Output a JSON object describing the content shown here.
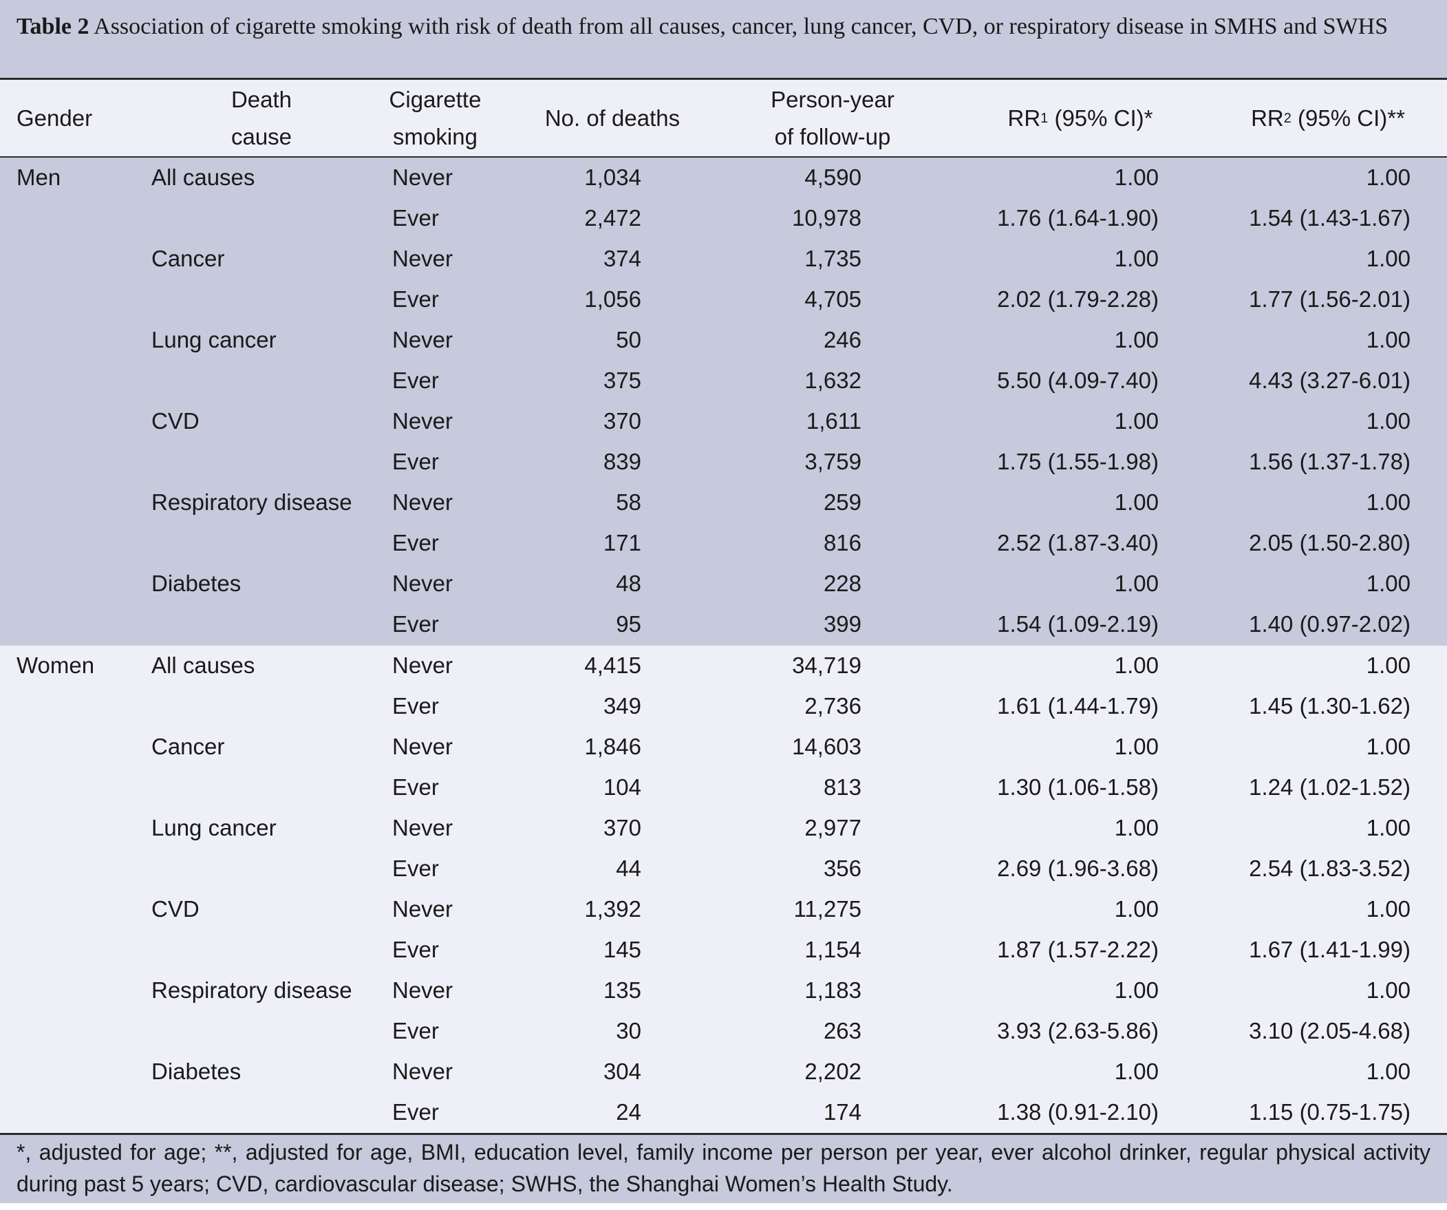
{
  "caption": {
    "label": "Table 2",
    "text": "Association of cigarette smoking with risk of death from all causes, cancer, lung cancer, CVD, or respiratory disease in SMHS and SWHS"
  },
  "headers": {
    "gender": "Gender",
    "death_cause_l1": "Death",
    "death_cause_l2": "cause",
    "smoking_l1": "Cigarette",
    "smoking_l2": "smoking",
    "deaths": "No. of deaths",
    "person_year_l1": "Person-year",
    "person_year_l2": "of follow-up",
    "rr1_pre": "RR",
    "rr1_sub": "1",
    "rr1_post": " (95% CI)*",
    "rr2_pre": "RR",
    "rr2_sub": "2",
    "rr2_post": " (95% CI)**"
  },
  "rows": {
    "men": [
      {
        "gender": "Men",
        "cause": "All causes",
        "smoking": "Never",
        "deaths": "1,034",
        "py": "4,590",
        "rr1": "1.00",
        "rr2": "1.00"
      },
      {
        "gender": "",
        "cause": "",
        "smoking": "Ever",
        "deaths": "2,472",
        "py": "10,978",
        "rr1": "1.76 (1.64-1.90)",
        "rr2": "1.54 (1.43-1.67)"
      },
      {
        "gender": "",
        "cause": "Cancer",
        "smoking": "Never",
        "deaths": "374",
        "py": "1,735",
        "rr1": "1.00",
        "rr2": "1.00"
      },
      {
        "gender": "",
        "cause": "",
        "smoking": "Ever",
        "deaths": "1,056",
        "py": "4,705",
        "rr1": "2.02 (1.79-2.28)",
        "rr2": "1.77 (1.56-2.01)"
      },
      {
        "gender": "",
        "cause": "Lung cancer",
        "smoking": "Never",
        "deaths": "50",
        "py": "246",
        "rr1": "1.00",
        "rr2": "1.00"
      },
      {
        "gender": "",
        "cause": "",
        "smoking": "Ever",
        "deaths": "375",
        "py": "1,632",
        "rr1": "5.50 (4.09-7.40)",
        "rr2": "4.43 (3.27-6.01)"
      },
      {
        "gender": "",
        "cause": "CVD",
        "smoking": "Never",
        "deaths": "370",
        "py": "1,611",
        "rr1": "1.00",
        "rr2": "1.00"
      },
      {
        "gender": "",
        "cause": "",
        "smoking": "Ever",
        "deaths": "839",
        "py": "3,759",
        "rr1": "1.75 (1.55-1.98)",
        "rr2": "1.56 (1.37-1.78)"
      },
      {
        "gender": "",
        "cause": "Respiratory disease",
        "smoking": "Never",
        "deaths": "58",
        "py": "259",
        "rr1": "1.00",
        "rr2": "1.00"
      },
      {
        "gender": "",
        "cause": "",
        "smoking": "Ever",
        "deaths": "171",
        "py": "816",
        "rr1": "2.52 (1.87-3.40)",
        "rr2": "2.05 (1.50-2.80)"
      },
      {
        "gender": "",
        "cause": "Diabetes",
        "smoking": "Never",
        "deaths": "48",
        "py": "228",
        "rr1": "1.00",
        "rr2": "1.00"
      },
      {
        "gender": "",
        "cause": "",
        "smoking": "Ever",
        "deaths": "95",
        "py": "399",
        "rr1": "1.54 (1.09-2.19)",
        "rr2": "1.40 (0.97-2.02)"
      }
    ],
    "women": [
      {
        "gender": "Women",
        "cause": "All causes",
        "smoking": "Never",
        "deaths": "4,415",
        "py": "34,719",
        "rr1": "1.00",
        "rr2": "1.00"
      },
      {
        "gender": "",
        "cause": "",
        "smoking": "Ever",
        "deaths": "349",
        "py": "2,736",
        "rr1": "1.61 (1.44-1.79)",
        "rr2": "1.45 (1.30-1.62)"
      },
      {
        "gender": "",
        "cause": "Cancer",
        "smoking": "Never",
        "deaths": "1,846",
        "py": "14,603",
        "rr1": "1.00",
        "rr2": "1.00"
      },
      {
        "gender": "",
        "cause": "",
        "smoking": "Ever",
        "deaths": "104",
        "py": "813",
        "rr1": "1.30 (1.06-1.58)",
        "rr2": "1.24 (1.02-1.52)"
      },
      {
        "gender": "",
        "cause": "Lung cancer",
        "smoking": "Never",
        "deaths": "370",
        "py": "2,977",
        "rr1": "1.00",
        "rr2": "1.00"
      },
      {
        "gender": "",
        "cause": "",
        "smoking": "Ever",
        "deaths": "44",
        "py": "356",
        "rr1": "2.69 (1.96-3.68)",
        "rr2": "2.54 (1.83-3.52)"
      },
      {
        "gender": "",
        "cause": "CVD",
        "smoking": "Never",
        "deaths": "1,392",
        "py": "11,275",
        "rr1": "1.00",
        "rr2": "1.00"
      },
      {
        "gender": "",
        "cause": "",
        "smoking": "Ever",
        "deaths": "145",
        "py": "1,154",
        "rr1": "1.87 (1.57-2.22)",
        "rr2": "1.67 (1.41-1.99)"
      },
      {
        "gender": "",
        "cause": "Respiratory disease",
        "smoking": "Never",
        "deaths": "135",
        "py": "1,183",
        "rr1": "1.00",
        "rr2": "1.00"
      },
      {
        "gender": "",
        "cause": "",
        "smoking": "Ever",
        "deaths": "30",
        "py": "263",
        "rr1": "3.93 (2.63-5.86)",
        "rr2": "3.10 (2.05-4.68)"
      },
      {
        "gender": "",
        "cause": "Diabetes",
        "smoking": "Never",
        "deaths": "304",
        "py": "2,202",
        "rr1": "1.00",
        "rr2": "1.00"
      },
      {
        "gender": "",
        "cause": "",
        "smoking": "Ever",
        "deaths": "24",
        "py": "174",
        "rr1": "1.38 (0.91-2.10)",
        "rr2": "1.15 (0.75-1.75)"
      }
    ]
  },
  "footnote": "*, adjusted for age; **, adjusted for age, BMI, education level, family income per person per year, ever alcohol drinker, regular physical activity during past 5 years; CVD, cardiovascular disease; SWHS, the Shanghai Women’s Health Study.",
  "colors": {
    "band_dark": "#c7c9dc",
    "band_light": "#eff0f7",
    "rule": "#2b2b2b"
  }
}
